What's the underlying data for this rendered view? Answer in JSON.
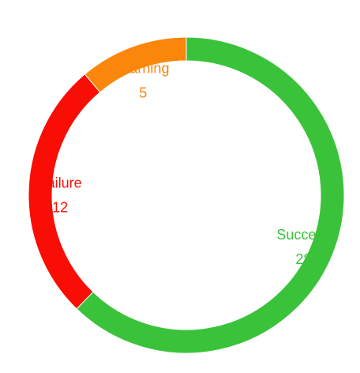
{
  "chart_data": {
    "type": "pie",
    "variant": "donut",
    "slices": [
      {
        "label": "Success",
        "value": 28,
        "color": "#3ac33a"
      },
      {
        "label": "Failure",
        "value": 12,
        "color": "#f90e05"
      },
      {
        "label": "Warning",
        "value": 5,
        "color": "#fb860c"
      }
    ],
    "start": "top",
    "direction": "clockwise",
    "title": "",
    "legend": "none"
  }
}
